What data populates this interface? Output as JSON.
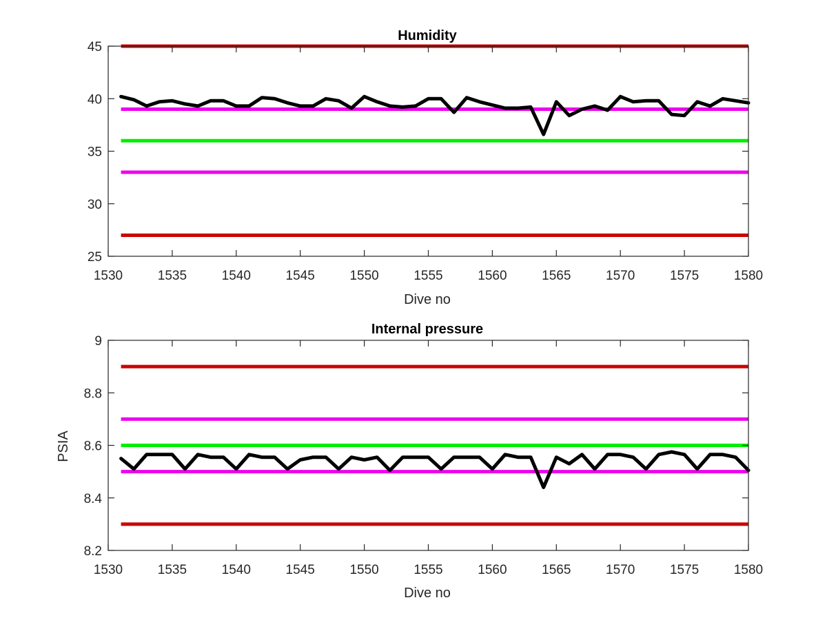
{
  "chart_data": [
    {
      "type": "line",
      "title": "Humidity",
      "xlabel": "Dive no",
      "ylabel": "",
      "xlim": [
        1530,
        1580
      ],
      "ylim": [
        25,
        45
      ],
      "xticks": [
        1530,
        1535,
        1540,
        1545,
        1550,
        1555,
        1560,
        1565,
        1570,
        1575,
        1580
      ],
      "yticks": [
        25,
        30,
        35,
        40,
        45
      ],
      "grid": false,
      "series": [
        {
          "color": "#000000",
          "x": [
            1531,
            1532,
            1533,
            1534,
            1535,
            1536,
            1537,
            1538,
            1539,
            1540,
            1541,
            1542,
            1543,
            1544,
            1545,
            1546,
            1547,
            1548,
            1549,
            1550,
            1551,
            1552,
            1553,
            1554,
            1555,
            1556,
            1557,
            1558,
            1559,
            1560,
            1561,
            1562,
            1563,
            1564,
            1565,
            1566,
            1567,
            1568,
            1569,
            1570,
            1571,
            1572,
            1573,
            1574,
            1575,
            1576,
            1577,
            1578,
            1579,
            1580
          ],
          "y": [
            40.2,
            39.9,
            39.3,
            39.7,
            39.8,
            39.5,
            39.3,
            39.8,
            39.8,
            39.3,
            39.3,
            40.1,
            40.0,
            39.6,
            39.3,
            39.3,
            40.0,
            39.8,
            39.1,
            40.2,
            39.7,
            39.3,
            39.2,
            39.3,
            40.0,
            40.0,
            38.7,
            40.1,
            39.7,
            39.4,
            39.1,
            39.1,
            39.2,
            36.6,
            39.7,
            38.4,
            39.0,
            39.3,
            38.9,
            40.2,
            39.7,
            39.8,
            39.8,
            38.5,
            38.4,
            39.7,
            39.3,
            40.0,
            39.8,
            39.6
          ]
        }
      ],
      "reference_lines": [
        {
          "y": 45,
          "color": "#cc0000"
        },
        {
          "y": 39,
          "color": "#ee00ee"
        },
        {
          "y": 36,
          "color": "#00ee00"
        },
        {
          "y": 33,
          "color": "#ee00ee"
        },
        {
          "y": 27,
          "color": "#cc0000"
        }
      ]
    },
    {
      "type": "line",
      "title": "Internal pressure",
      "xlabel": "Dive no",
      "ylabel": "PSIA",
      "xlim": [
        1530,
        1580
      ],
      "ylim": [
        8.2,
        9
      ],
      "xticks": [
        1530,
        1535,
        1540,
        1545,
        1550,
        1555,
        1560,
        1565,
        1570,
        1575,
        1580
      ],
      "yticks": [
        8.2,
        8.4,
        8.6,
        8.8,
        9
      ],
      "grid": false,
      "series": [
        {
          "color": "#000000",
          "x": [
            1531,
            1532,
            1533,
            1534,
            1535,
            1536,
            1537,
            1538,
            1539,
            1540,
            1541,
            1542,
            1543,
            1544,
            1545,
            1546,
            1547,
            1548,
            1549,
            1550,
            1551,
            1552,
            1553,
            1554,
            1555,
            1556,
            1557,
            1558,
            1559,
            1560,
            1561,
            1562,
            1563,
            1564,
            1565,
            1566,
            1567,
            1568,
            1569,
            1570,
            1571,
            1572,
            1573,
            1574,
            1575,
            1576,
            1577,
            1578,
            1579,
            1580
          ],
          "y": [
            8.55,
            8.51,
            8.565,
            8.565,
            8.565,
            8.51,
            8.565,
            8.555,
            8.555,
            8.51,
            8.565,
            8.555,
            8.555,
            8.51,
            8.545,
            8.555,
            8.555,
            8.51,
            8.555,
            8.545,
            8.555,
            8.505,
            8.555,
            8.555,
            8.555,
            8.51,
            8.555,
            8.555,
            8.555,
            8.51,
            8.565,
            8.555,
            8.555,
            8.44,
            8.555,
            8.53,
            8.565,
            8.51,
            8.565,
            8.565,
            8.555,
            8.51,
            8.565,
            8.575,
            8.565,
            8.51,
            8.565,
            8.565,
            8.555,
            8.505
          ]
        }
      ],
      "reference_lines": [
        {
          "y": 8.9,
          "color": "#cc0000"
        },
        {
          "y": 8.7,
          "color": "#ee00ee"
        },
        {
          "y": 8.6,
          "color": "#00ee00"
        },
        {
          "y": 8.5,
          "color": "#ee00ee"
        },
        {
          "y": 8.3,
          "color": "#cc0000"
        }
      ]
    }
  ]
}
